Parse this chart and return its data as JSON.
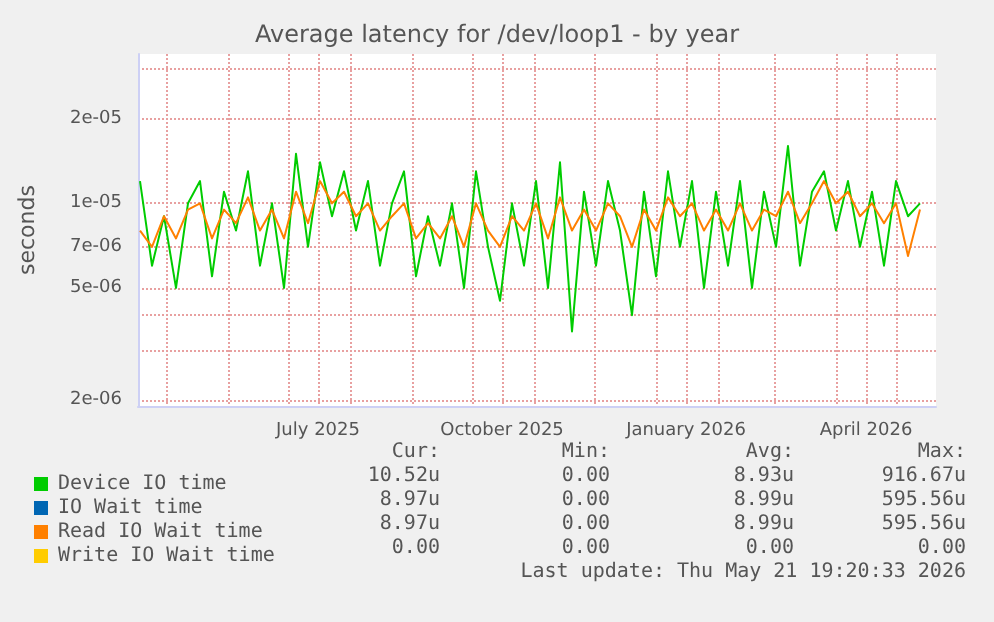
{
  "chart_data": {
    "type": "line",
    "title": "Average latency for /dev/loop1 - by year",
    "ylabel": "seconds",
    "log": "y",
    "grid": true,
    "legend": "bottom",
    "marker": "none",
    "line_style": "solid",
    "xlim": [
      "2025-04-17",
      "2026-05-21"
    ],
    "xticks": [
      {
        "value": "2025-05-01",
        "label": null
      },
      {
        "value": "2025-06-01",
        "label": null
      },
      {
        "value": "2025-07-01",
        "label": null
      },
      {
        "value": "2025-07-16",
        "label": "July 2025"
      },
      {
        "value": "2025-08-01",
        "label": null
      },
      {
        "value": "2025-09-01",
        "label": null
      },
      {
        "value": "2025-10-01",
        "label": null
      },
      {
        "value": "2025-10-16",
        "label": "October 2025"
      },
      {
        "value": "2025-11-01",
        "label": null
      },
      {
        "value": "2025-12-01",
        "label": null
      },
      {
        "value": "2026-01-01",
        "label": null
      },
      {
        "value": "2026-01-16",
        "label": "January 2026"
      },
      {
        "value": "2026-02-01",
        "label": null
      },
      {
        "value": "2026-03-01",
        "label": null
      },
      {
        "value": "2026-04-01",
        "label": null
      },
      {
        "value": "2026-04-16",
        "label": "April 2026"
      },
      {
        "value": "2026-05-01",
        "label": null
      }
    ],
    "ylim": [
      1.9e-06,
      3.4e-05
    ],
    "yticks": [
      {
        "value": 2e-06,
        "label": "2e-06"
      },
      {
        "value": 3e-06,
        "label": null
      },
      {
        "value": 4e-06,
        "label": null
      },
      {
        "value": 5e-06,
        "label": "5e-06"
      },
      {
        "value": 7e-06,
        "label": "7e-06"
      },
      {
        "value": 1e-05,
        "label": "1e-05"
      },
      {
        "value": 2e-05,
        "label": "2e-05"
      },
      {
        "value": 3e-05,
        "label": null
      }
    ],
    "x": [
      "2025-04-18",
      "2025-04-24",
      "2025-04-30",
      "2025-05-06",
      "2025-05-12",
      "2025-05-18",
      "2025-05-24",
      "2025-05-30",
      "2025-06-05",
      "2025-06-11",
      "2025-06-17",
      "2025-06-23",
      "2025-06-29",
      "2025-07-05",
      "2025-07-11",
      "2025-07-17",
      "2025-07-23",
      "2025-07-29",
      "2025-08-04",
      "2025-08-10",
      "2025-08-16",
      "2025-08-22",
      "2025-08-28",
      "2025-09-03",
      "2025-09-09",
      "2025-09-15",
      "2025-09-21",
      "2025-09-27",
      "2025-10-03",
      "2025-10-09",
      "2025-10-15",
      "2025-10-21",
      "2025-10-27",
      "2025-11-02",
      "2025-11-08",
      "2025-11-14",
      "2025-11-20",
      "2025-11-26",
      "2025-12-02",
      "2025-12-08",
      "2025-12-14",
      "2025-12-20",
      "2025-12-26",
      "2026-01-01",
      "2026-01-07",
      "2026-01-13",
      "2026-01-19",
      "2026-01-25",
      "2026-01-31",
      "2026-02-06",
      "2026-02-12",
      "2026-02-18",
      "2026-02-24",
      "2026-03-02",
      "2026-03-08",
      "2026-03-14",
      "2026-03-20",
      "2026-03-26",
      "2026-04-01",
      "2026-04-07",
      "2026-04-13",
      "2026-04-19",
      "2026-04-25",
      "2026-05-01",
      "2026-05-07",
      "2026-05-13"
    ],
    "series": [
      {
        "name": "Device IO time",
        "color": "#00cc00",
        "values": [
          1.2e-05,
          6e-06,
          9e-06,
          5e-06,
          1e-05,
          1.2e-05,
          5.5e-06,
          1.1e-05,
          8e-06,
          1.3e-05,
          6e-06,
          1e-05,
          5e-06,
          1.5e-05,
          7e-06,
          1.4e-05,
          9e-06,
          1.3e-05,
          8e-06,
          1.2e-05,
          6e-06,
          1e-05,
          1.3e-05,
          5.5e-06,
          9e-06,
          6e-06,
          1e-05,
          5e-06,
          1.3e-05,
          7e-06,
          4.5e-06,
          1e-05,
          6e-06,
          1.2e-05,
          5e-06,
          1.4e-05,
          3.5e-06,
          1.1e-05,
          6e-06,
          1.2e-05,
          8e-06,
          4e-06,
          1.1e-05,
          5.5e-06,
          1.3e-05,
          7e-06,
          1.2e-05,
          5e-06,
          1.1e-05,
          6e-06,
          1.2e-05,
          5e-06,
          1.1e-05,
          7e-06,
          1.6e-05,
          6e-06,
          1.1e-05,
          1.3e-05,
          8e-06,
          1.2e-05,
          7e-06,
          1.1e-05,
          6e-06,
          1.2e-05,
          9e-06,
          1e-05
        ]
      },
      {
        "name": "IO Wait time",
        "color": "#0066b3",
        "values": [
          null,
          null,
          null,
          null,
          null,
          null,
          null,
          null,
          null,
          null,
          null,
          null,
          null,
          null,
          null,
          null,
          null,
          null,
          null,
          null,
          null,
          null,
          null,
          null,
          null,
          null,
          null,
          null,
          null,
          null,
          null,
          null,
          null,
          null,
          null,
          null,
          null,
          null,
          null,
          null,
          null,
          null,
          null,
          null,
          null,
          null,
          null,
          null,
          null,
          null,
          null,
          null,
          null,
          null,
          null,
          null,
          null,
          null,
          null,
          null,
          null,
          null,
          null,
          null,
          null,
          null
        ]
      },
      {
        "name": "Read IO Wait time",
        "color": "#ff8000",
        "values": [
          8e-06,
          7e-06,
          9e-06,
          7.5e-06,
          9.5e-06,
          1e-05,
          7.5e-06,
          9.5e-06,
          8.5e-06,
          1.05e-05,
          8e-06,
          9.5e-06,
          7.5e-06,
          1.1e-05,
          8.5e-06,
          1.2e-05,
          1e-05,
          1.1e-05,
          9e-06,
          1e-05,
          8e-06,
          9e-06,
          1e-05,
          7.5e-06,
          8.5e-06,
          7.5e-06,
          9e-06,
          7e-06,
          1e-05,
          8e-06,
          7e-06,
          9e-06,
          8e-06,
          1e-05,
          7.5e-06,
          1.05e-05,
          8e-06,
          9.5e-06,
          8e-06,
          1e-05,
          9e-06,
          7e-06,
          9.5e-06,
          8e-06,
          1.05e-05,
          9e-06,
          1e-05,
          8e-06,
          9.5e-06,
          8e-06,
          1e-05,
          8e-06,
          9.5e-06,
          9e-06,
          1.1e-05,
          8.5e-06,
          1e-05,
          1.2e-05,
          1e-05,
          1.1e-05,
          9e-06,
          1e-05,
          8.5e-06,
          1e-05,
          6.5e-06,
          9.5e-06
        ]
      },
      {
        "name": "Write IO Wait time",
        "color": "#ffcc00",
        "values": [
          null,
          null,
          null,
          null,
          null,
          null,
          null,
          null,
          null,
          null,
          null,
          null,
          null,
          null,
          null,
          null,
          null,
          null,
          null,
          null,
          null,
          null,
          null,
          null,
          null,
          null,
          null,
          null,
          null,
          null,
          null,
          null,
          null,
          null,
          null,
          null,
          null,
          null,
          null,
          null,
          null,
          null,
          null,
          null,
          null,
          null,
          null,
          null,
          null,
          null,
          null,
          null,
          null,
          null,
          null,
          null,
          null,
          null,
          null,
          null,
          null,
          null,
          null,
          null,
          null,
          null
        ]
      }
    ],
    "annotations": [
      "Cur:",
      "Min:",
      "Avg:",
      "Max:",
      "10.52u",
      "0.00",
      "8.93u",
      "916.67u",
      "8.97u",
      "0.00",
      "8.99u",
      "595.56u",
      "8.97u",
      "0.00",
      "8.99u",
      "595.56u",
      "0.00",
      "0.00",
      "0.00",
      "0.00",
      "Last update: Thu May 21 19:20:33 2026"
    ]
  }
}
